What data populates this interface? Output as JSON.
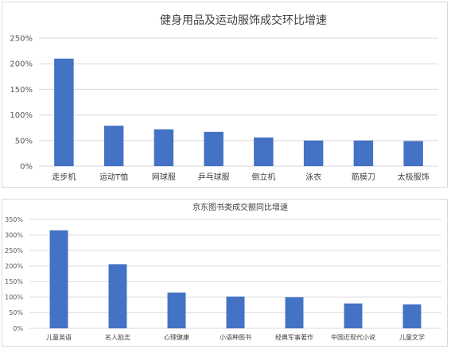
{
  "chart_data": [
    {
      "type": "bar",
      "title": "健身用品及运动服饰成交环比增速",
      "categories": [
        "走步机",
        "运动T恤",
        "网球服",
        "乒乓球服",
        "倒立机",
        "泳衣",
        "筋膜刀",
        "太极服饰"
      ],
      "values": [
        210,
        79,
        72,
        67,
        56,
        50,
        50,
        49
      ],
      "ylim": [
        0,
        250
      ],
      "yticks": [
        0,
        50,
        100,
        150,
        200,
        250
      ],
      "tick_suffix": "%",
      "grid": true,
      "legend": "none",
      "bar_color": "#4472c4"
    },
    {
      "type": "bar",
      "title": "京东图书类成交额同比增速",
      "categories": [
        "儿童英语",
        "名人励志",
        "心理健康",
        "小语种图书",
        "经典军事著作",
        "中国近现代小说",
        "儿童文学"
      ],
      "values": [
        315,
        206,
        115,
        102,
        100,
        80,
        77
      ],
      "ylim": [
        0,
        350
      ],
      "yticks": [
        0,
        50,
        100,
        150,
        200,
        250,
        300,
        350
      ],
      "tick_suffix": "%",
      "grid": true,
      "legend": "none",
      "bar_color": "#4472c4"
    }
  ]
}
